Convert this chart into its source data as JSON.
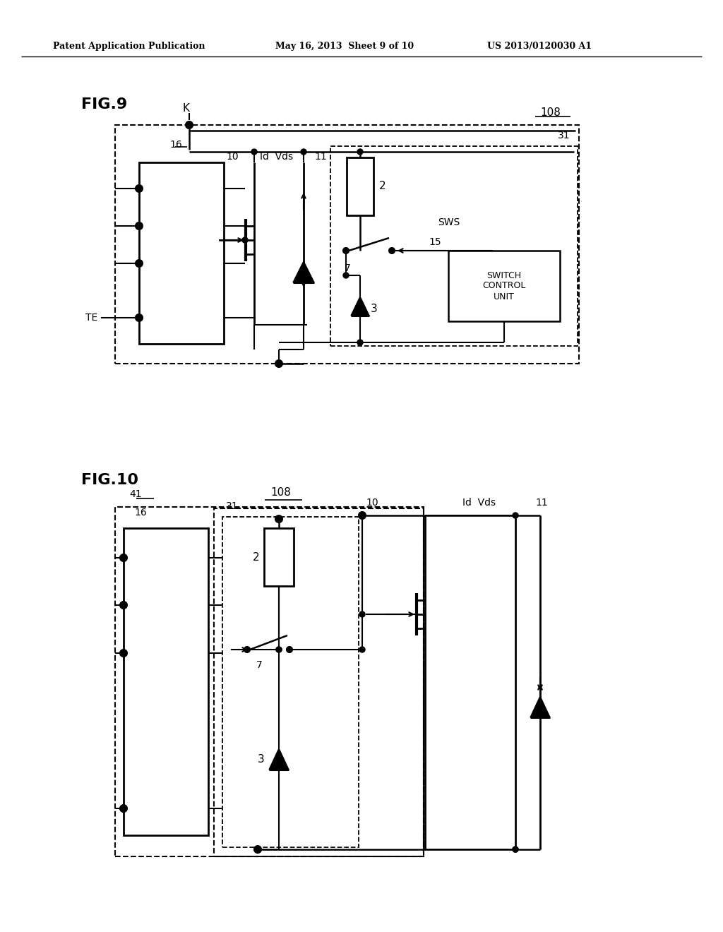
{
  "header_left": "Patent Application Publication",
  "header_mid": "May 16, 2013  Sheet 9 of 10",
  "header_right": "US 2013/0120030 A1",
  "fig9_label": "FIG.9",
  "fig10_label": "FIG.10",
  "bg_color": "#ffffff",
  "line_color": "#000000"
}
